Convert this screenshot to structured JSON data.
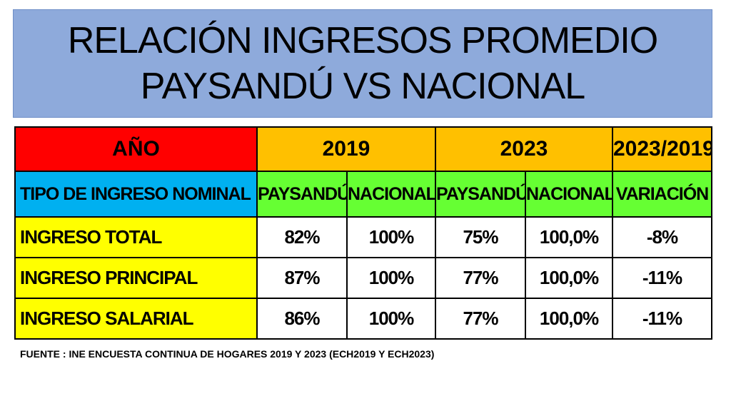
{
  "title": {
    "line1": "RELACIÓN INGRESOS PROMEDIO",
    "line2": "PAYSANDÚ VS NACIONAL"
  },
  "colors": {
    "title_bg": "#8eaadb",
    "year_label_bg": "#ff0000",
    "year_bg": "#ffc000",
    "type_label_bg": "#00b0f0",
    "subheader_bg": "#66ff33",
    "row_label_bg": "#ffff00"
  },
  "table": {
    "header_year": {
      "label": "AÑO",
      "y2019": "2019",
      "y2023": "2023",
      "ratio": "2023/2019"
    },
    "header_type": {
      "label": "TIPO DE INGRESO NOMINAL",
      "paysandu_2019": "PAYSANDÚ",
      "nacional_2019": "NACIONAL",
      "paysandu_2023": "PAYSANDÚ",
      "nacional_2023": "NACIONAL",
      "variacion": "VARIACIÓN"
    },
    "rows": [
      {
        "label": "INGRESO TOTAL",
        "paysandu_2019": "82%",
        "nacional_2019": "100%",
        "paysandu_2023": "75%",
        "nacional_2023": "100,0%",
        "variacion": "-8%"
      },
      {
        "label": "INGRESO PRINCIPAL",
        "paysandu_2019": "87%",
        "nacional_2019": "100%",
        "paysandu_2023": "77%",
        "nacional_2023": "100,0%",
        "variacion": "-11%"
      },
      {
        "label": "INGRESO SALARIAL",
        "paysandu_2019": "86%",
        "nacional_2019": "100%",
        "paysandu_2023": "77%",
        "nacional_2023": "100,0%",
        "variacion": "-11%"
      }
    ]
  },
  "source": "FUENTE : INE ENCUESTA CONTINUA DE HOGARES 2019 Y 2023 (ECH2019 Y ECH2023)"
}
